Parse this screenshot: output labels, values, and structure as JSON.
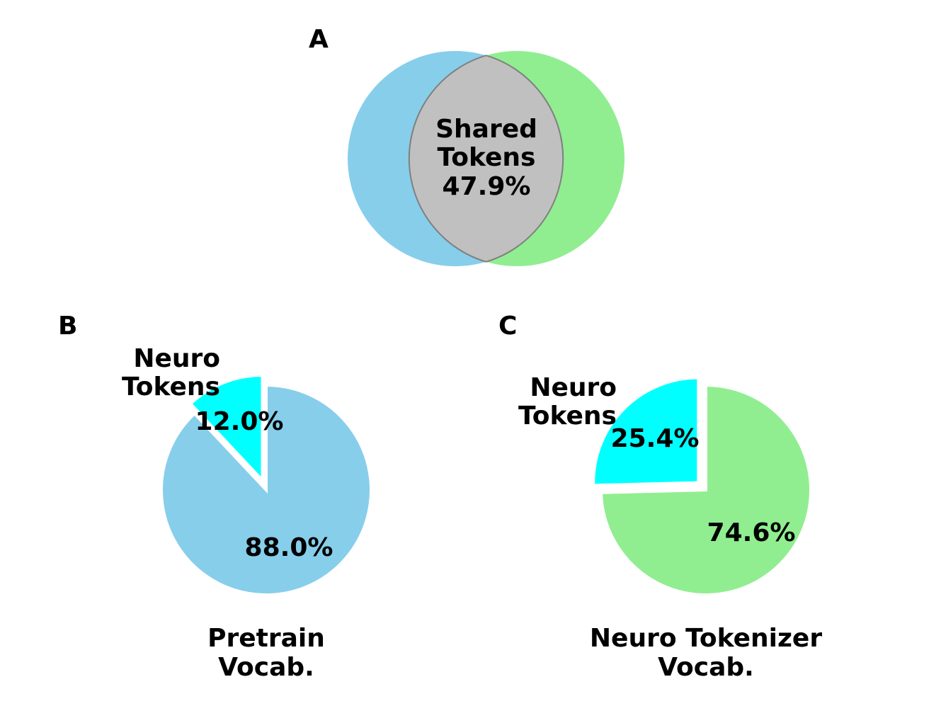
{
  "panels": {
    "a": "A",
    "b": "B",
    "c": "C"
  },
  "chart_data": [
    {
      "type": "venn",
      "panel": "A",
      "sets": [
        {
          "set": "left",
          "color": "#87CEEB"
        },
        {
          "set": "right",
          "color": "#90EE90"
        }
      ],
      "intersection": {
        "label_lines": [
          "Shared",
          "Tokens",
          "47.9%"
        ],
        "value": 47.9,
        "unit": "%",
        "color": "#C0C0C0"
      }
    },
    {
      "type": "pie",
      "panel": "B",
      "title_lines": [
        "Pretrain",
        "Vocab."
      ],
      "slices": [
        {
          "name_lines": [
            "Neuro",
            "Tokens"
          ],
          "value": 12.0,
          "pct_label": "12.0%",
          "color": "#00FFFF",
          "exploded": true
        },
        {
          "name_lines": [],
          "value": 88.0,
          "pct_label": "88.0%",
          "color": "#87CEEB",
          "exploded": false
        }
      ]
    },
    {
      "type": "pie",
      "panel": "C",
      "title_lines": [
        "Neuro Tokenizer",
        "Vocab."
      ],
      "slices": [
        {
          "name_lines": [
            "Neuro",
            "Tokens"
          ],
          "value": 25.4,
          "pct_label": "25.4%",
          "color": "#00FFFF",
          "exploded": true
        },
        {
          "name_lines": [],
          "value": 74.6,
          "pct_label": "74.6%",
          "color": "#90EE90",
          "exploded": false
        }
      ]
    }
  ]
}
